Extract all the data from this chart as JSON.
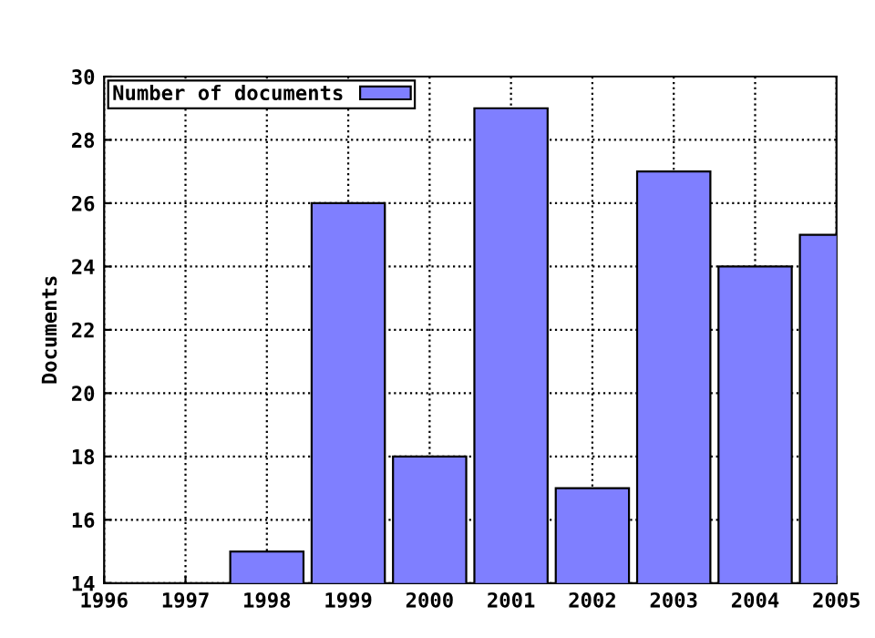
{
  "chart_data": {
    "type": "bar",
    "ylabel": "Documents",
    "x": [
      1998,
      1999,
      2000,
      2001,
      2002,
      2003,
      2004,
      2005
    ],
    "series": [
      {
        "name": "Number of documents",
        "color": "#7f7fff",
        "values": [
          15,
          26,
          18,
          29,
          17,
          27,
          24,
          25
        ]
      }
    ],
    "xlim": [
      1996,
      2005
    ],
    "xticks": [
      1996,
      1997,
      1998,
      1999,
      2000,
      2001,
      2002,
      2003,
      2004,
      2005
    ],
    "ylim": [
      14,
      30
    ],
    "yticks": [
      14,
      16,
      18,
      20,
      22,
      24,
      26,
      28,
      30
    ],
    "grid": true,
    "legend": "top left"
  }
}
